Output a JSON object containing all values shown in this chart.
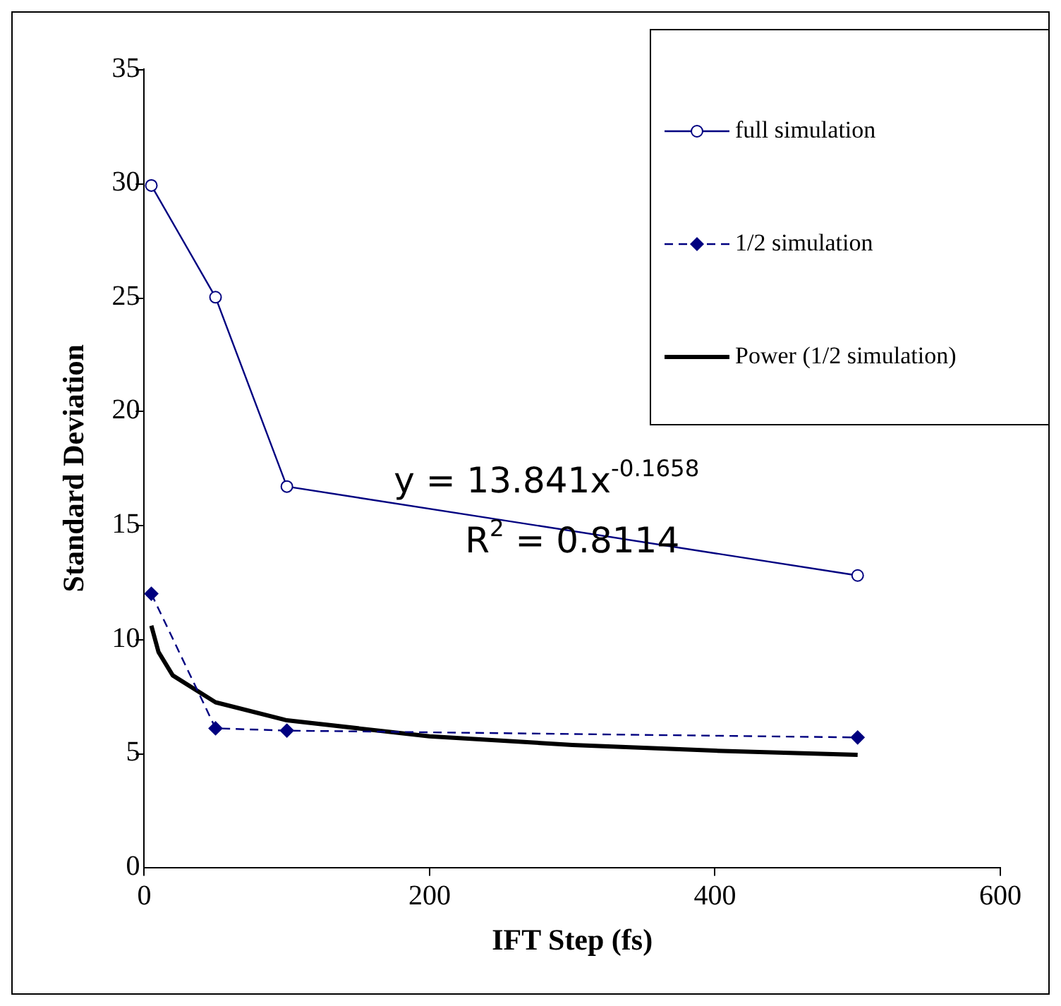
{
  "chart_data": {
    "type": "line",
    "xlabel": "IFT Step (fs)",
    "ylabel": "Standard Deviation",
    "xlim": [
      0,
      600
    ],
    "xticks": [
      0,
      200,
      400,
      600
    ],
    "ylim": [
      0,
      35
    ],
    "yticks": [
      0,
      5,
      10,
      15,
      20,
      25,
      30,
      35
    ],
    "grid": false,
    "legend": "top right",
    "annotations": [
      "y = 13.841x$^{-0.1658}$",
      "R$^{2}$ = 0.8114"
    ],
    "series": [
      {
        "name": "full simulation",
        "color": "#000080",
        "x": [
          5,
          50,
          100,
          500
        ],
        "values": [
          29.9,
          25,
          16.7,
          12.8
        ],
        "marker": "circle",
        "line_style": "solid"
      },
      {
        "name": "1/2 simulation",
        "color": "#000080",
        "x": [
          5,
          50,
          100,
          500
        ],
        "values": [
          12,
          6.1,
          6,
          5.7
        ],
        "marker": "diamond",
        "line_style": "dashed"
      },
      {
        "name": "Power (1/2 simulation)",
        "color": "#000000",
        "x": [
          5,
          10,
          20,
          50,
          100,
          200,
          300,
          400,
          500
        ],
        "values": [
          10.6,
          9.45,
          8.42,
          7.24,
          6.45,
          5.75,
          5.37,
          5.12,
          4.94
        ],
        "marker": "none",
        "line_style": "solid"
      }
    ]
  }
}
